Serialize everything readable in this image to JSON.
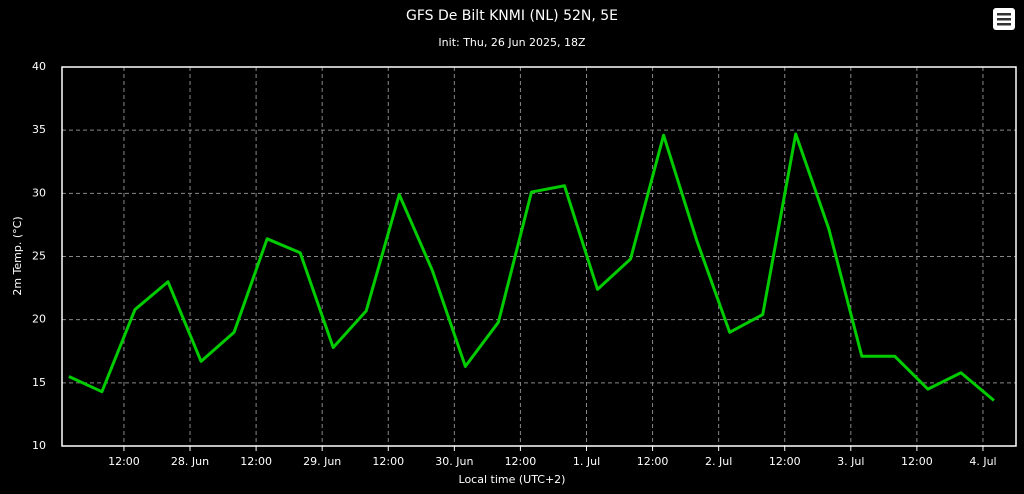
{
  "chart_data": {
    "type": "line",
    "title": "GFS De Bilt KNMI (NL) 52N, 5E",
    "subtitle": "Init: Thu, 26 Jun 2025, 18Z",
    "y_label": "2m Temp. (°C)",
    "x_label": "Local time (UTC+2)",
    "x": [
      "2025-06-27T02:00",
      "2025-06-27T08:00",
      "2025-06-27T14:00",
      "2025-06-27T20:00",
      "2025-06-28T02:00",
      "2025-06-28T08:00",
      "2025-06-28T14:00",
      "2025-06-28T20:00",
      "2025-06-29T02:00",
      "2025-06-29T08:00",
      "2025-06-29T14:00",
      "2025-06-29T20:00",
      "2025-06-30T02:00",
      "2025-06-30T08:00",
      "2025-06-30T14:00",
      "2025-06-30T20:00",
      "2025-07-01T02:00",
      "2025-07-01T08:00",
      "2025-07-01T14:00",
      "2025-07-01T20:00",
      "2025-07-02T02:00",
      "2025-07-02T08:00",
      "2025-07-02T14:00",
      "2025-07-02T20:00",
      "2025-07-03T02:00",
      "2025-07-03T08:00",
      "2025-07-03T14:00",
      "2025-07-03T20:00",
      "2025-07-04T02:00"
    ],
    "series": [
      {
        "name": "2m Temp.",
        "color": "#00cc00",
        "values": [
          15.5,
          14.3,
          20.8,
          23.0,
          16.7,
          19.0,
          26.4,
          25.3,
          17.8,
          20.7,
          29.9,
          23.9,
          16.3,
          19.8,
          30.1,
          30.6,
          22.4,
          24.8,
          34.6,
          26.3,
          19.0,
          20.4,
          34.7,
          27.2,
          17.1,
          17.1,
          14.5,
          15.8,
          13.6
        ]
      }
    ],
    "xlim": [
      "2025-06-27T00:45",
      "2025-07-04T06:00"
    ],
    "xticks": [
      {
        "value": "2025-06-27T12:00",
        "label": "12:00"
      },
      {
        "value": "2025-06-28T00:00",
        "label": "28. Jun"
      },
      {
        "value": "2025-06-28T12:00",
        "label": "12:00"
      },
      {
        "value": "2025-06-29T00:00",
        "label": "29. Jun"
      },
      {
        "value": "2025-06-29T12:00",
        "label": "12:00"
      },
      {
        "value": "2025-06-30T00:00",
        "label": "30. Jun"
      },
      {
        "value": "2025-06-30T12:00",
        "label": "12:00"
      },
      {
        "value": "2025-07-01T00:00",
        "label": "1. Jul"
      },
      {
        "value": "2025-07-01T12:00",
        "label": "12:00"
      },
      {
        "value": "2025-07-02T00:00",
        "label": "2. Jul"
      },
      {
        "value": "2025-07-02T12:00",
        "label": "12:00"
      },
      {
        "value": "2025-07-03T00:00",
        "label": "3. Jul"
      },
      {
        "value": "2025-07-03T12:00",
        "label": "12:00"
      },
      {
        "value": "2025-07-04T00:00",
        "label": "4. Jul"
      }
    ],
    "ylim": [
      10,
      40
    ],
    "yticks": [
      10,
      15,
      20,
      25,
      30,
      35,
      40
    ],
    "grid": true
  }
}
